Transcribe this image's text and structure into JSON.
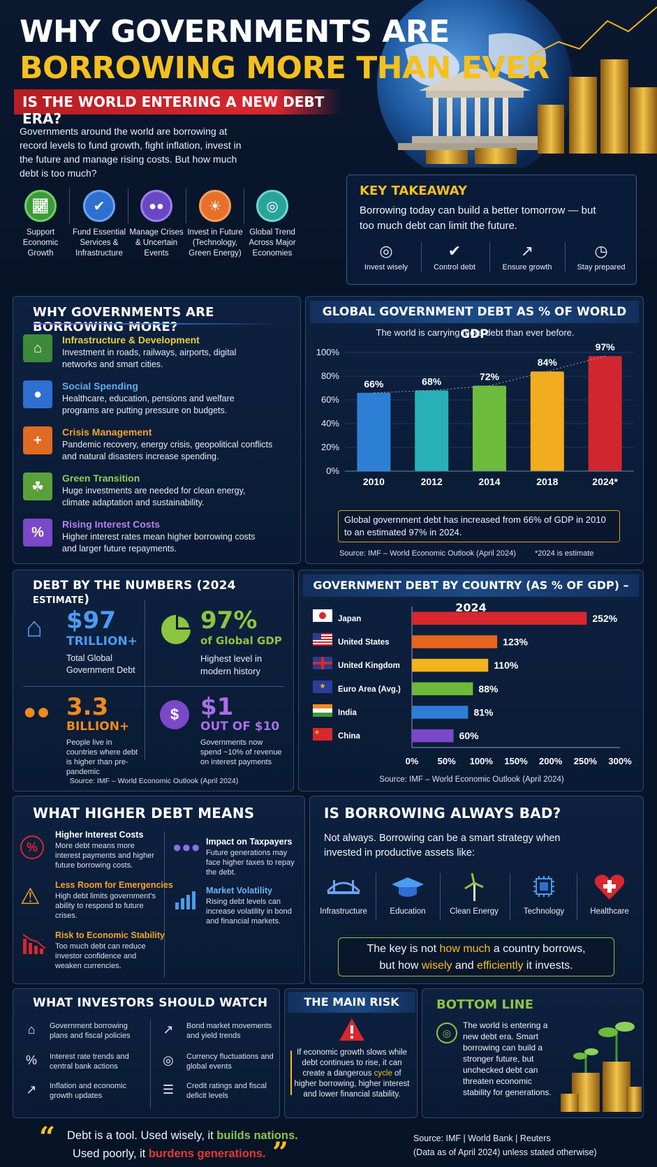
{
  "header": {
    "title_line1": "WHY GOVERNMENTS ARE",
    "title_line2": "BORROWING MORE THAN EVER",
    "subtitle": "IS THE WORLD ENTERING A NEW DEBT ERA?",
    "intro": "Governments around the world are borrowing at record levels to fund growth, fight inflation, invest in the future and manage rising costs. But how much debt is too much?"
  },
  "reasons_icons": [
    {
      "label": "Support Economic Growth",
      "icon": "growth-chart-icon",
      "color": "#3d9a3a"
    },
    {
      "label": "Fund Essential Services & Infrastructure",
      "icon": "shield-icon",
      "color": "#2f6fd1"
    },
    {
      "label": "Manage Crises & Uncertain Events",
      "icon": "people-icon",
      "color": "#6a48c4"
    },
    {
      "label": "Invest in Future (Technology, Green Energy)",
      "icon": "lightbulb-icon",
      "color": "#e7712a"
    },
    {
      "label": "Global Trend Across Major Economies",
      "icon": "globe-icon",
      "color": "#2aa39a"
    }
  ],
  "key_takeaway": {
    "title": "KEY TAKEAWAY",
    "text": "Borrowing today can build a better tomorrow — but too much debt can limit the future.",
    "items": [
      "Invest wisely",
      "Control debt",
      "Ensure growth",
      "Stay prepared"
    ]
  },
  "why_borrowing": {
    "title": "WHY GOVERNMENTS ARE BORROWING MORE?",
    "items": [
      {
        "title": "Infrastructure & Development",
        "desc": "Investment in roads, railways, airports, digital networks and smart cities.",
        "color": "#e8d03a",
        "icon_color": "#3d8a3a",
        "icon": "bank-icon"
      },
      {
        "title": "Social Spending",
        "desc": "Healthcare, education, pensions and welfare programs are putting pressure on budgets.",
        "color": "#5ab1f2",
        "icon_color": "#2f6fd1",
        "icon": "people-icon"
      },
      {
        "title": "Crisis Management",
        "desc": "Pandemic recovery, energy crisis, geopolitical conflicts and natural disasters increase spending.",
        "color": "#f2a42c",
        "icon_color": "#e06a22",
        "icon": "shield-plus-icon"
      },
      {
        "title": "Green Transition",
        "desc": "Huge investments are needed for clean energy, climate adaptation and sustainability.",
        "color": "#8cd05a",
        "icon_color": "#5aa03a",
        "icon": "leaf-icon"
      },
      {
        "title": "Rising Interest Costs",
        "desc": "Higher interest rates mean higher borrowing costs and larger future repayments.",
        "color": "#b482f0",
        "icon_color": "#7a48c8",
        "icon": "percent-icon"
      }
    ]
  },
  "chart_data": [
    {
      "type": "bar",
      "title": "GLOBAL GOVERNMENT DEBT AS % OF WORLD GDP",
      "subtitle": "The world is carrying more debt than ever before.",
      "categories": [
        "2010",
        "2012",
        "2014",
        "2018",
        "2024*"
      ],
      "values": [
        66,
        68,
        72,
        84,
        97
      ],
      "labels": [
        "66%",
        "68%",
        "72%",
        "84%",
        "97%"
      ],
      "colors": [
        "#2d7fd6",
        "#27b0b8",
        "#6dbb3c",
        "#f2ad1e",
        "#d0262e"
      ],
      "ylim": [
        0,
        100
      ],
      "yticks": [
        "0%",
        "20%",
        "40%",
        "60%",
        "80%",
        "100%"
      ],
      "note": "Global government debt has increased from 66% of GDP in 2010 to an estimated 97% in 2024.",
      "source": "Source: IMF – World Economic Outlook (April 2024)",
      "footnote": "*2024 is estimate"
    },
    {
      "type": "bar",
      "orientation": "horizontal",
      "title": "GOVERNMENT DEBT BY COUNTRY (AS % OF GDP) – 2024",
      "categories": [
        "Japan",
        "United States",
        "United Kingdom",
        "Euro Area (Avg.)",
        "India",
        "China"
      ],
      "values": [
        252,
        123,
        110,
        88,
        81,
        60
      ],
      "labels": [
        "252%",
        "123%",
        "110%",
        "88%",
        "81%",
        "60%"
      ],
      "colors": [
        "#d8272f",
        "#e8651f",
        "#f2b31c",
        "#6fb83a",
        "#2d7fd6",
        "#7a48c8"
      ],
      "xlim": [
        0,
        300
      ],
      "xticks": [
        "0%",
        "50%",
        "100%",
        "150%",
        "200%",
        "250%",
        "300%"
      ],
      "source": "Source: IMF – World Economic Outlook (April 2024)"
    }
  ],
  "numbers": {
    "title": "DEBT BY THE NUMBERS (2024 ",
    "title_small": "ESTIMATE",
    "title_end": ")",
    "stats": [
      {
        "big": "$97",
        "sub": "TRILLION+",
        "desc": "Total Global Government Debt",
        "color": "#4a9cf0"
      },
      {
        "big": "97%",
        "sub": "of Global GDP",
        "desc": "Highest level in modern history",
        "color": "#8cc63f"
      },
      {
        "big": "3.3",
        "sub": "BILLION+",
        "desc": "People live in countries where debt is higher than pre-pandemic",
        "color": "#f08a1e"
      },
      {
        "big": "$1",
        "sub": "OUT OF $10",
        "desc": "Governments now spend ~10% of revenue on interest payments",
        "color": "#a86ee8"
      }
    ],
    "source": "Source: IMF – World Economic Outlook (April 2024)"
  },
  "higher_debt": {
    "title": "WHAT HIGHER DEBT MEANS",
    "left": [
      {
        "title": "Higher Interest Costs",
        "desc": "More debt means more interest payments and higher future borrowing costs.",
        "color": "#ffffff",
        "icon": "percent-icon"
      },
      {
        "title": "Less Room for Emergencies",
        "desc": "High debt limits government's ability to respond to future crises.",
        "color": "#f2a42c",
        "icon": "warning-icon"
      },
      {
        "title": "Risk to Economic Stability",
        "desc": "Too much debt can reduce investor confidence and weaken currencies.",
        "color": "#f2a42c",
        "icon": "decline-chart-icon"
      }
    ],
    "right": [
      {
        "title": "Impact on Taxpayers",
        "desc": "Future generations may face higher taxes to repay the debt.",
        "color": "#ffffff",
        "icon": "people-icon"
      },
      {
        "title": "Market Volatility",
        "desc": "Rising debt levels can increase volatility in bond and financial markets.",
        "color": "#6fb4f5",
        "icon": "bar-chart-icon"
      }
    ]
  },
  "always_bad": {
    "title": "IS BORROWING ALWAYS BAD?",
    "text": "Not always. Borrowing can be a smart strategy when invested in productive assets like:",
    "assets": [
      "Infrastructure",
      "Education",
      "Clean Energy",
      "Technology",
      "Healthcare"
    ],
    "key_1": "The key is not ",
    "key_how_much": "how much",
    "key_2": " a country borrows,",
    "key_3": "but how ",
    "key_wisely": "wisely",
    "key_and": " and ",
    "key_efficiently": "efficiently",
    "key_4": " it invests."
  },
  "investors": {
    "title": "WHAT INVESTORS SHOULD WATCH",
    "items": [
      "Government borrowing plans and fiscal policies",
      "Interest rate trends and central bank actions",
      "Inflation and economic growth updates",
      "Bond market movements and yield trends",
      "Currency fluctuations and global events",
      "Credit ratings and fiscal deficit levels"
    ]
  },
  "main_risk": {
    "title": "THE MAIN RISK",
    "text_1": "If economic growth slows while debt continues to rise, it can create a dangerous ",
    "text_cycle": "cycle",
    "text_2": " of higher borrowing, higher interest and lower financial stability."
  },
  "bottom_line": {
    "title": "BOTTOM LINE",
    "text": "The world is entering a new debt era. Smart borrowing can build a stronger future, but unchecked debt can threaten economic stability for generations."
  },
  "footer": {
    "quote_1": "Debt is a tool. Used wisely, it ",
    "quote_builds": "builds nations.",
    "quote_2": "Used poorly, it ",
    "quote_burdens": "burdens generations.",
    "source_1": "Source: IMF  |  World Bank  |  Reuters",
    "source_2": "(Data as of April 2024) unless stated otherwise)"
  }
}
